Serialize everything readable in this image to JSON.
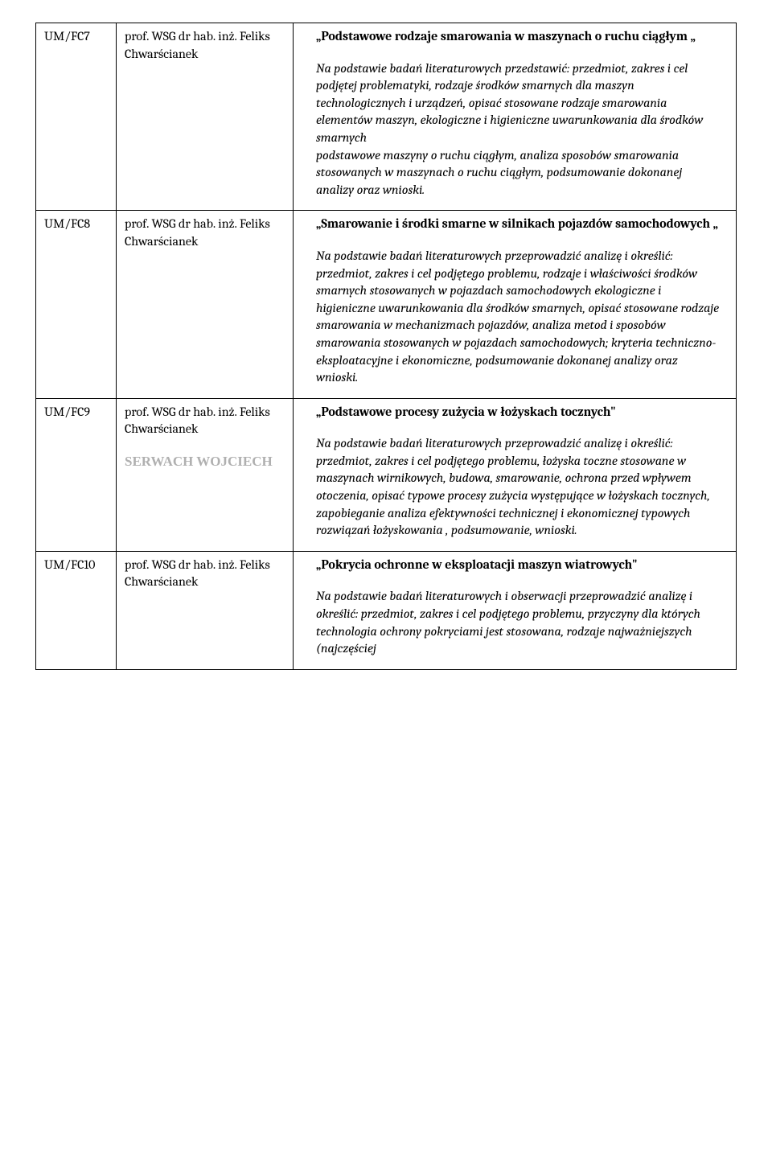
{
  "rows": [
    {
      "code": "UM/FC7",
      "prof": "prof. WSG dr hab. inż. Feliks Chwarścianek",
      "student": "",
      "title": "„Podstawowe rodzaje smarowania w maszynach o ruchu ciągłym „",
      "body": "Na podstawie badań literaturowych przedstawić: przedmiot, zakres i cel podjętej problematyki, rodzaje środków smarnych dla maszyn technologicznych i urządzeń, opisać stosowane rodzaje smarowania elementów maszyn, ekologiczne i higieniczne uwarunkowania dla środków smarnych\npodstawowe maszyny o ruchu ciągłym, analiza sposobów smarowania stosowanych w maszynach o ruchu ciągłym, podsumowanie dokonanej analizy oraz wnioski."
    },
    {
      "code": "UM/FC8",
      "prof": "prof. WSG dr hab. inż. Feliks Chwarścianek",
      "student": "",
      "title": "„Smarowanie i środki smarne w silnikach pojazdów samochodowych „",
      "body": "Na podstawie badań literaturowych przeprowadzić analizę i określić: przedmiot, zakres i cel podjętego problemu, rodzaje i właściwości środków smarnych stosowanych w pojazdach samochodowych ekologiczne i higieniczne uwarunkowania dla środków smarnych, opisać stosowane rodzaje smarowania w mechanizmach pojazdów, analiza metod i sposobów smarowania stosowanych w pojazdach samochodowych; kryteria techniczno-eksploatacyjne i ekonomiczne, podsumowanie dokonanej analizy oraz wnioski."
    },
    {
      "code": "UM/FC9",
      "prof": "prof. WSG dr hab. inż. Feliks Chwarścianek",
      "student": "SERWACH WOJCIECH",
      "title": "„Podstawowe procesy zużycia w łożyskach tocznych\"",
      "body": "Na podstawie badań literaturowych przeprowadzić analizę i określić: przedmiot, zakres i cel podjętego problemu, łożyska toczne stosowane w maszynach wirnikowych, budowa, smarowanie, ochrona przed wpływem otoczenia, opisać typowe procesy zużycia występujące w łożyskach tocznych, zapobieganie analiza efektywności technicznej i ekonomicznej typowych rozwiązań łożyskowania , podsumowanie, wnioski."
    },
    {
      "code": "UM/FC10",
      "prof": "prof. WSG dr hab. inż. Feliks Chwarścianek",
      "student": "",
      "title": "„Pokrycia ochronne w eksploatacji maszyn wiatrowych\"",
      "body": "Na podstawie badań literaturowych i obserwacji przeprowadzić analizę i określić: przedmiot, zakres i cel podjętego problemu, przyczyny dla których technologia ochrony pokryciami jest stosowana, rodzaje najważniejszych (najczęściej"
    }
  ]
}
